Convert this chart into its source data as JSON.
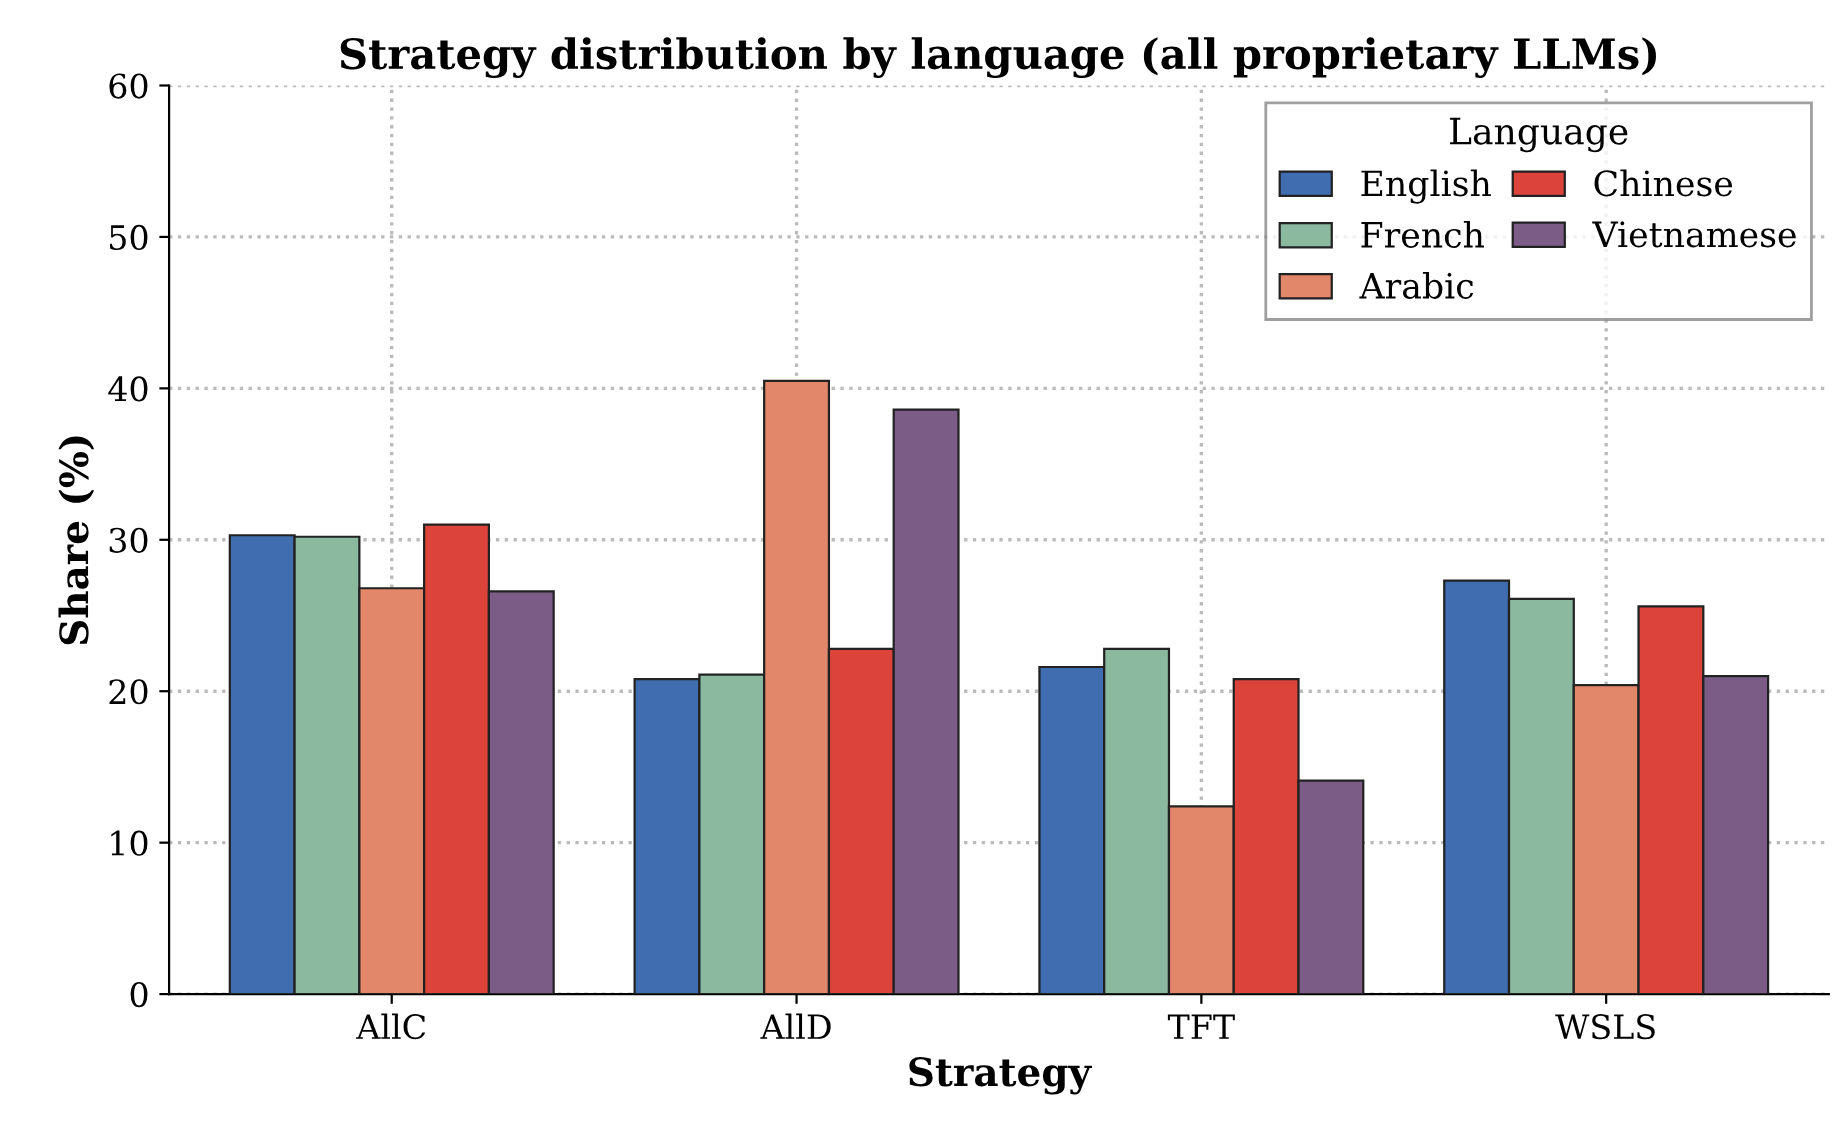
{
  "chart_data": {
    "type": "bar",
    "title": "Strategy distribution by language (all proprietary LLMs)",
    "xlabel": "Strategy",
    "ylabel": "Share (%)",
    "legend_title": "Language",
    "categories": [
      "AllC",
      "AllD",
      "TFT",
      "WSLS"
    ],
    "series": [
      {
        "name": "English",
        "color": "#3f6db0",
        "values": [
          30.3,
          20.8,
          21.6,
          27.3
        ]
      },
      {
        "name": "French",
        "color": "#8ab9a0",
        "values": [
          30.2,
          21.1,
          22.8,
          26.1
        ]
      },
      {
        "name": "Arabic",
        "color": "#e3876b",
        "values": [
          26.8,
          40.5,
          12.4,
          20.4
        ]
      },
      {
        "name": "Chinese",
        "color": "#dc433b",
        "values": [
          31.0,
          22.8,
          20.8,
          25.6
        ]
      },
      {
        "name": "Vietnamese",
        "color": "#7b5c87",
        "values": [
          26.6,
          38.6,
          14.1,
          21.0
        ]
      }
    ],
    "ylim": [
      0,
      60
    ],
    "yticks": [
      0,
      10,
      20,
      30,
      40,
      50,
      60
    ],
    "grid": true,
    "legend": "top right"
  }
}
